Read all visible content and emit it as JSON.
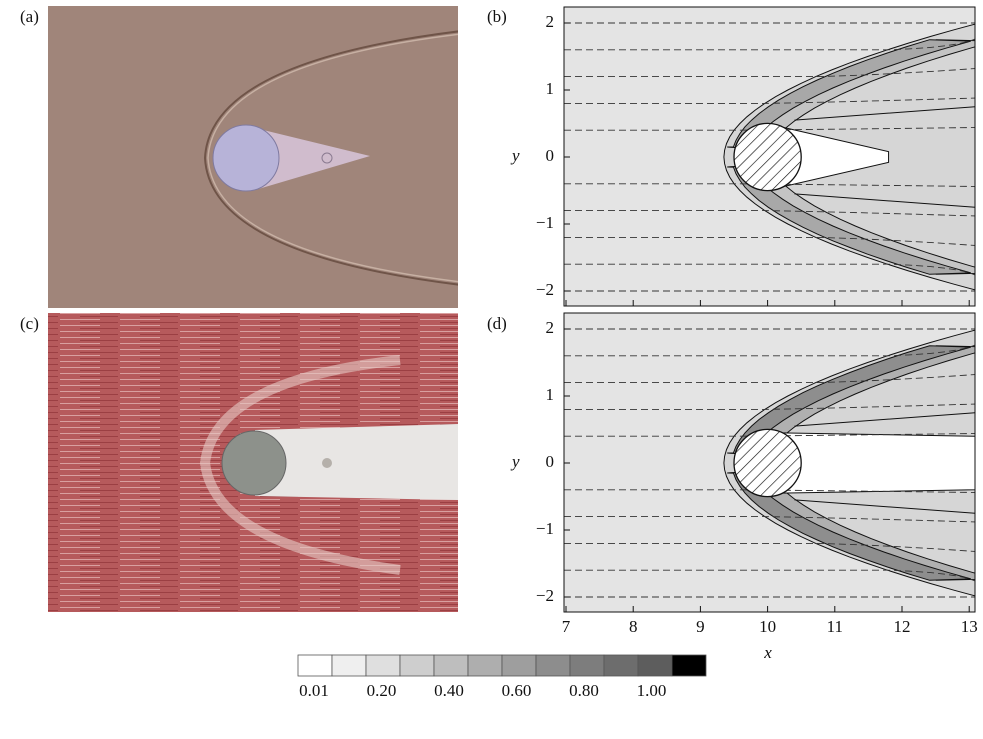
{
  "panels": [
    {
      "label": "(a)"
    },
    {
      "label": "(b)"
    },
    {
      "label": "(c)"
    },
    {
      "label": "(d)"
    }
  ],
  "axes": {
    "y_label": "y",
    "x_label": "x",
    "y_ticks": [
      "2",
      "1",
      "0",
      "−1",
      "−2"
    ],
    "x_ticks": [
      "7",
      "8",
      "9",
      "10",
      "11",
      "12",
      "13"
    ]
  },
  "colorbar": {
    "labels": [
      "0.01",
      "0.20",
      "0.40",
      "0.60",
      "0.80",
      "1.00"
    ]
  }
}
